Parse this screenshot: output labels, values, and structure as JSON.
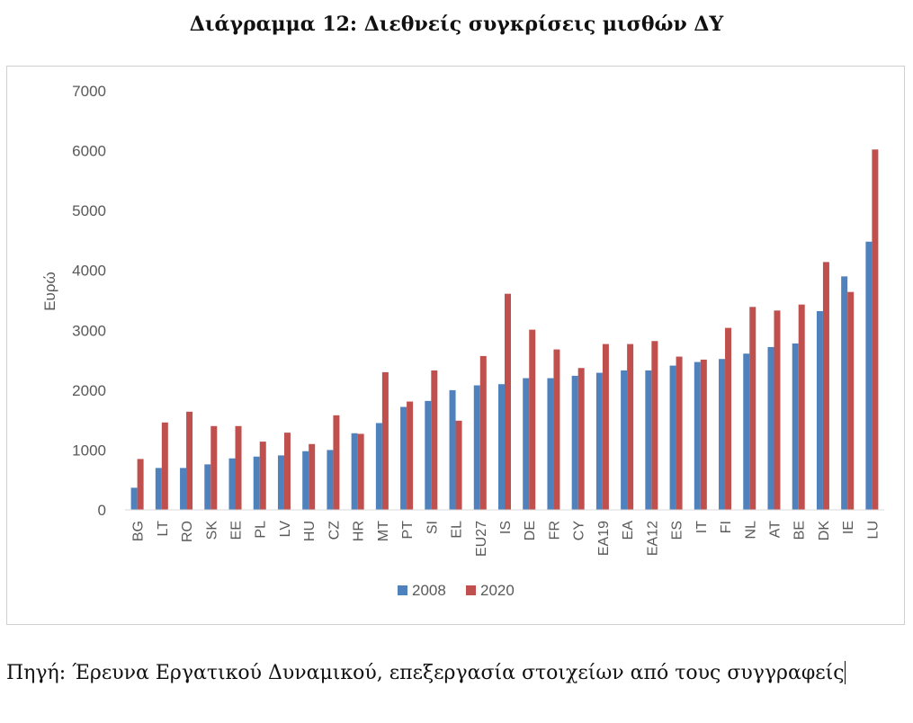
{
  "header": {
    "title": "Διάγραμμα 12: Διεθνείς συγκρίσεις μισθών ΔΥ"
  },
  "source_note": "Πηγή: Έρευνα Εργατικού Δυναμικού, επεξεργασία στοιχείων από τους συγγραφείς",
  "chart_data": {
    "type": "bar",
    "ylabel": "Ευρώ",
    "xlabel": "",
    "ylim": [
      0,
      7000
    ],
    "yticks": [
      0,
      1000,
      2000,
      3000,
      4000,
      5000,
      6000,
      7000
    ],
    "grid": false,
    "legend_position": "bottom",
    "categories": [
      "BG",
      "LT",
      "RO",
      "SK",
      "EE",
      "PL",
      "LV",
      "HU",
      "CZ",
      "HR",
      "MT",
      "PT",
      "SI",
      "EL",
      "EU27",
      "IS",
      "DE",
      "FR",
      "CY",
      "EA19",
      "EA",
      "EA12",
      "ES",
      "IT",
      "FI",
      "NL",
      "AT",
      "BE",
      "DK",
      "IE",
      "LU"
    ],
    "series": [
      {
        "name": "2008",
        "color": "#4f81bd",
        "values": [
          370,
          700,
          700,
          760,
          860,
          890,
          910,
          980,
          1000,
          1280,
          1450,
          1720,
          1820,
          2000,
          2080,
          2100,
          2200,
          2200,
          2240,
          2290,
          2330,
          2330,
          2410,
          2470,
          2520,
          2610,
          2720,
          2780,
          3320,
          3900,
          4480
        ]
      },
      {
        "name": "2020",
        "color": "#c0504d",
        "values": [
          850,
          1460,
          1640,
          1400,
          1400,
          1140,
          1290,
          1100,
          1580,
          1270,
          2300,
          1810,
          2330,
          1490,
          2570,
          3610,
          3010,
          2680,
          2370,
          2770,
          2770,
          2820,
          2560,
          2510,
          3040,
          3390,
          3330,
          3430,
          4140,
          3640,
          6020
        ]
      }
    ]
  }
}
